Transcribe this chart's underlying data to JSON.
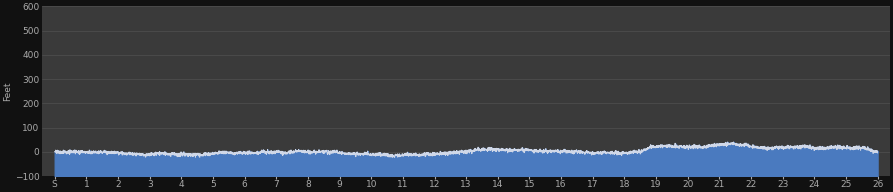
{
  "background_color": "#111111",
  "plot_bg_color": "#3a3a3a",
  "fill_color": "#4a7abf",
  "line_color": "#d0d8e8",
  "line_width": 0.7,
  "ylabel": "Feet",
  "ylabel_fontsize": 6.5,
  "ylabel_color": "#aaaaaa",
  "tick_color": "#aaaaaa",
  "tick_fontsize": 6.5,
  "grid_color": "#555555",
  "grid_linewidth": 0.4,
  "ylim": [
    -100,
    600
  ],
  "yticks": [
    -100,
    0,
    100,
    200,
    300,
    400,
    500,
    600
  ],
  "xtick_labels": [
    "S",
    "1",
    "2",
    "3",
    "4",
    "5",
    "6",
    "7",
    "8",
    "9",
    "10",
    "11",
    "12",
    "13",
    "14",
    "15",
    "16",
    "17",
    "18",
    "19",
    "20",
    "21",
    "22",
    "23",
    "24",
    "25",
    "26"
  ],
  "num_points": 5000,
  "seed": 7
}
